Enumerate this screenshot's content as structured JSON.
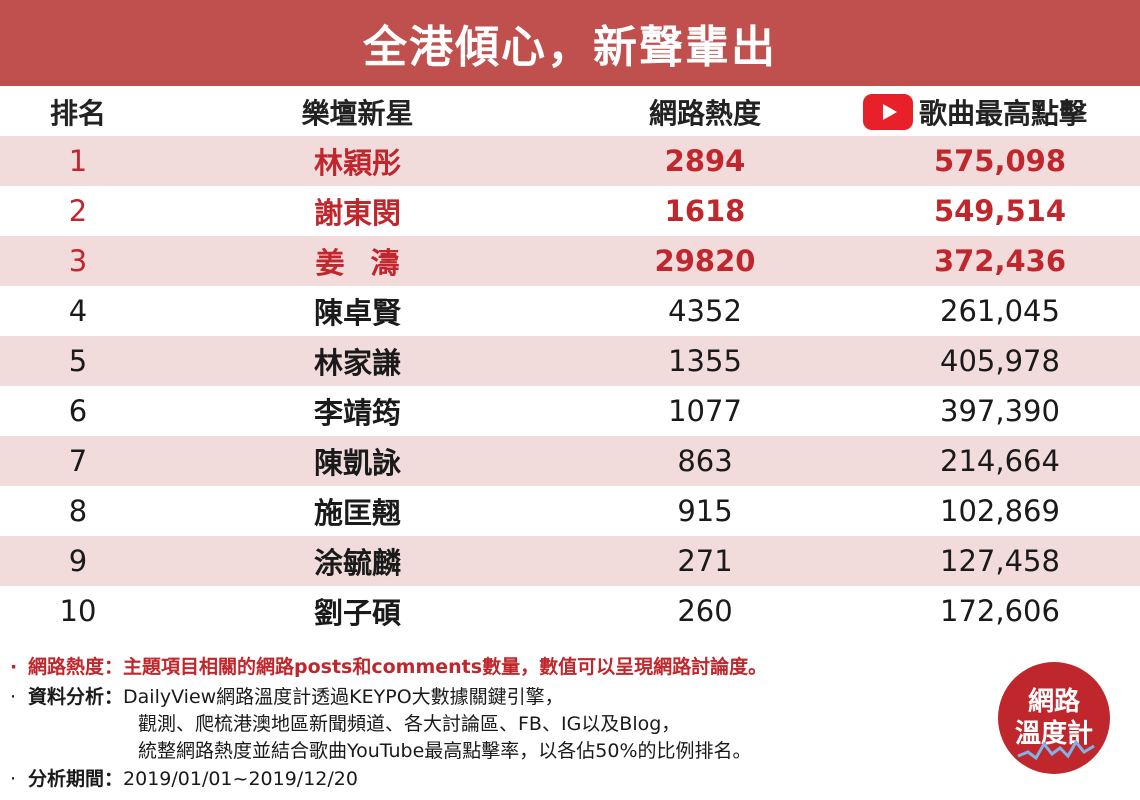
{
  "title": "全港傾心，新聲輩出",
  "table": {
    "headers": {
      "rank": "排名",
      "name": "樂壇新星",
      "heat": "網路熱度",
      "clicks": "歌曲最高點擊",
      "clicks_icon": "youtube-icon"
    },
    "rows": [
      {
        "rank": "1",
        "name": "林穎彤",
        "heat": "2894",
        "clicks": "575,098"
      },
      {
        "rank": "2",
        "name": "謝東閔",
        "heat": "1618",
        "clicks": "549,514"
      },
      {
        "rank": "3",
        "name": "姜濤",
        "heat": "29820",
        "clicks": "372,436"
      },
      {
        "rank": "4",
        "name": "陳卓賢",
        "heat": "4352",
        "clicks": "261,045"
      },
      {
        "rank": "5",
        "name": "林家謙",
        "heat": "1355",
        "clicks": "405,978"
      },
      {
        "rank": "6",
        "name": "李靖筠",
        "heat": "1077",
        "clicks": "397,390"
      },
      {
        "rank": "7",
        "name": "陳凱詠",
        "heat": "863",
        "clicks": "214,664"
      },
      {
        "rank": "8",
        "name": "施匡翹",
        "heat": "915",
        "clicks": "102,869"
      },
      {
        "rank": "9",
        "name": "涂毓麟",
        "heat": "271",
        "clicks": "127,458"
      },
      {
        "rank": "10",
        "name": "劉子碩",
        "heat": "260",
        "clicks": "172,606"
      }
    ]
  },
  "notes": {
    "heat_definition": "網路熱度：主題項目相關的網路posts和comments數量，數值可以呈現網路討論度。",
    "analysis_label": "資料分析：",
    "analysis_line1": "DailyView網路溫度計透過KEYPO大數據關鍵引擎，",
    "analysis_line2": "觀測、爬梳港澳地區新聞頻道、各大討論區、FB、IG以及Blog，",
    "analysis_line3": "統整網路熱度並結合歌曲YouTube最高點擊率，以各佔50%的比例排名。",
    "period_label": "分析期間：",
    "period_value": "2019/01/01~2019/12/20"
  },
  "logo": {
    "line1": "網路",
    "line2": "溫度計"
  },
  "colors": {
    "brand_red": "#c0504d",
    "highlight_red": "#c0272d",
    "row_shade": "#f2dbdb",
    "youtube_red": "#e8202a"
  }
}
